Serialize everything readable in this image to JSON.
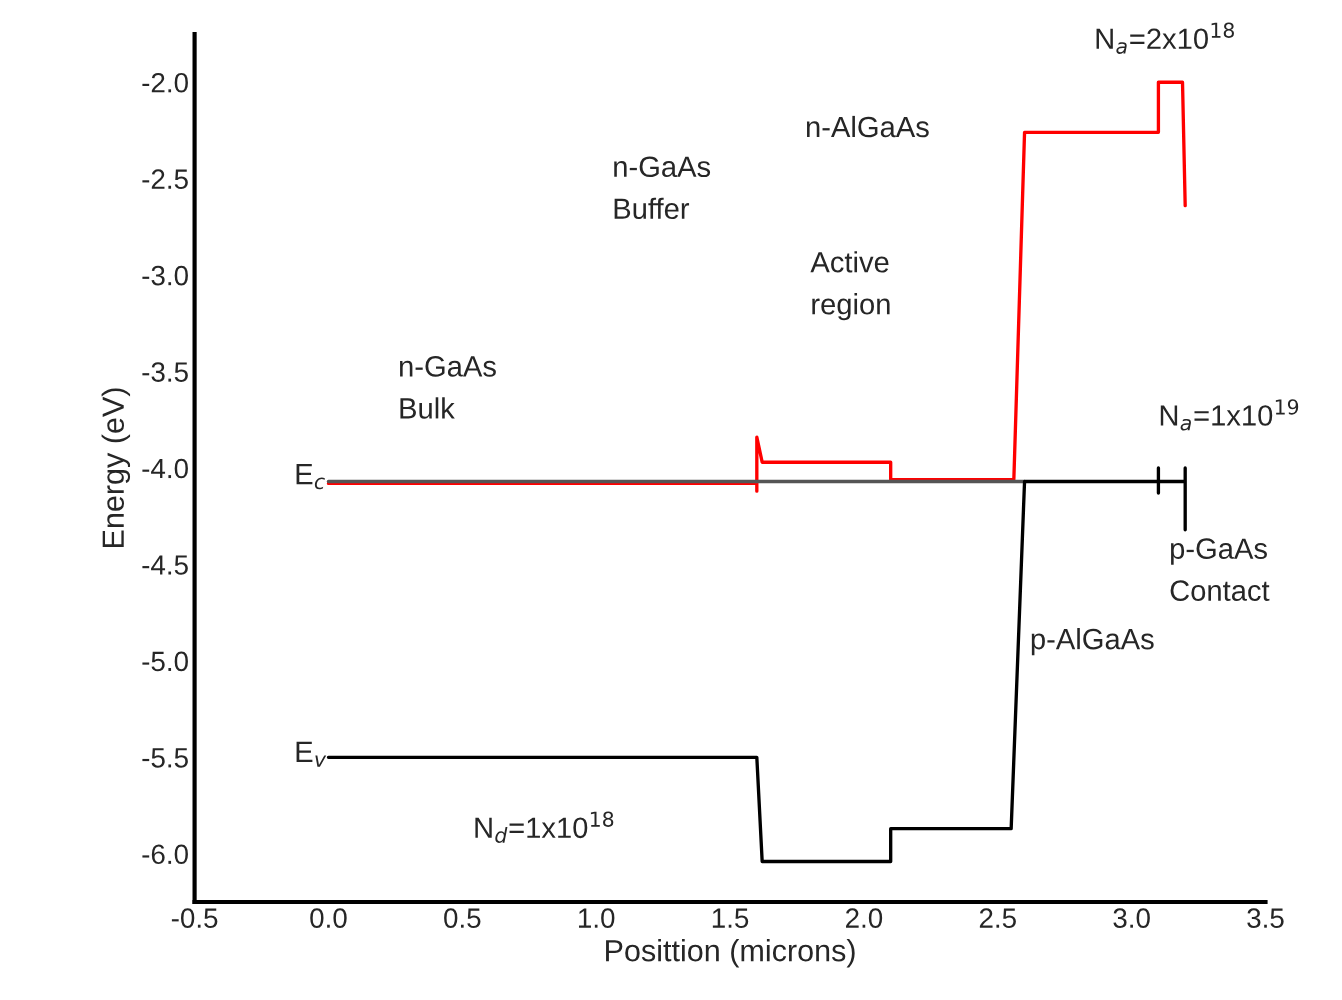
{
  "chart_data": {
    "type": "line",
    "xlabel": "Posittion (microns)",
    "ylabel": "Energy (eV)",
    "xlim": [
      -0.5,
      3.5
    ],
    "ylim": [
      -6.25,
      -1.75
    ],
    "xticks": [
      {
        "value": -0.5,
        "label": "-0.5"
      },
      {
        "value": 0,
        "label": "0.0"
      },
      {
        "value": 0.5,
        "label": "0.5"
      },
      {
        "value": 1,
        "label": "1.0"
      },
      {
        "value": 1.5,
        "label": "1.5"
      },
      {
        "value": 2,
        "label": "2.0"
      },
      {
        "value": 2.5,
        "label": "2.5"
      },
      {
        "value": 3,
        "label": "3.0"
      },
      {
        "value": 3.5,
        "label": "3.5"
      }
    ],
    "yticks": [
      {
        "value": -6,
        "label": "-6.0"
      },
      {
        "value": -5.5,
        "label": "-5.5"
      },
      {
        "value": -5,
        "label": "-5.0"
      },
      {
        "value": -4.5,
        "label": "-4.5"
      },
      {
        "value": -4,
        "label": "-4.0"
      },
      {
        "value": -3.5,
        "label": "-3.5"
      },
      {
        "value": -3,
        "label": "-3.0"
      },
      {
        "value": -2.5,
        "label": "-2.5"
      },
      {
        "value": -2,
        "label": "-2.0"
      }
    ],
    "grid": false,
    "marker": "none",
    "line_style": "solid",
    "series": [
      {
        "color": "#ff0000",
        "x": [
          0,
          1.6,
          1.6,
          1.6,
          1.62,
          2.1,
          2.1,
          2.56,
          2.6,
          3.1,
          3.1,
          3.19,
          3.2
        ],
        "values": [
          -4.08,
          -4.08,
          -4.12,
          -3.84,
          -3.97,
          -3.97,
          -4.06,
          -4.06,
          -2.26,
          -2.26,
          -2.0,
          -2.0,
          -2.64
        ]
      },
      {
        "color": "#555555",
        "x": [
          0,
          2.6
        ],
        "values": [
          -4.07,
          -4.07
        ]
      },
      {
        "color": "#000000",
        "x": [
          0,
          1.6,
          1.62,
          2.1,
          2.1,
          2.55,
          2.6,
          3.1,
          3.1,
          3.1,
          3.1,
          3.2,
          3.2,
          3.2
        ],
        "values": [
          -5.5,
          -5.5,
          -6.04,
          -6.04,
          -5.87,
          -5.87,
          -4.07,
          -4.07,
          -4.0,
          -4.13,
          -4.07,
          -4.07,
          -4.0,
          -4.32
        ]
      }
    ],
    "annotations": [
      "n-GaAs\nBulk",
      "n-GaAs\nBuffer",
      "n-AlGaAs",
      "Active\nregion",
      "N$_{a}$=2x10$^{18}$",
      "N$_{a}$=1x10$^{19}$",
      "p-GaAs\nContact",
      "p-AlGaAs",
      "E$_{c}$",
      "E$_{v}$",
      "N$_{d}$=1x10$^{18}$"
    ]
  }
}
